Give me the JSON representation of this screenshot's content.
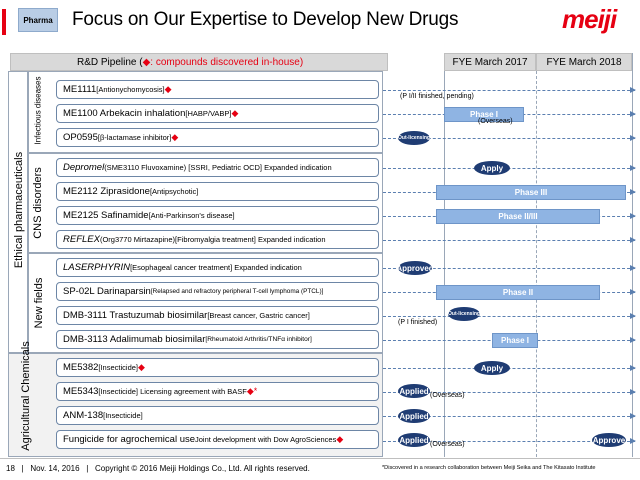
{
  "header": {
    "tag": "Pharma",
    "title": "Focus on Our Expertise to Develop New Drugs",
    "logo": "meiji"
  },
  "table_header": {
    "pipeline_label": "R&D Pipeline (",
    "legend_mark": "◆",
    "legend_text": ": compounds discovered in-house)",
    "legend_close": "",
    "fye_2017": "FYE March 2017",
    "fye_2018": "FYE March 2018"
  },
  "sections": {
    "ethical": "Ethical pharmaceuticals",
    "infectious": "Infectious diseases",
    "cns": "CNS disorders",
    "newfields": "New fields",
    "agri": "Agricultural Chemicals"
  },
  "items": {
    "me1111": {
      "name": "ME1111 ",
      "detail": "[Antionychomycosis] ",
      "mark": "◆"
    },
    "me1100": {
      "name": "ME1100  Arbekacin inhalation ",
      "detail": "[HABP/VABP] ",
      "mark": "◆"
    },
    "op0595": {
      "name": "OP0595 ",
      "detail": "[β-lactamase inhibitor] ",
      "mark": "◆"
    },
    "depromel": {
      "name": "Depromel",
      "detail": " (SME3110  Fluvoxamine) [SSRI, Pediatric OCD] Expanded indication"
    },
    "me2112": {
      "name": "ME2112  Ziprasidone ",
      "detail": "[Antipsychotic]"
    },
    "me2125": {
      "name": "ME2125  Safinamide ",
      "detail": "[Anti-Parkinson's disease]"
    },
    "reflex": {
      "name": "REFLEX",
      "detail": "  (Org3770 Mirtazapine)[Fibromyalgia treatment] Expanded indication"
    },
    "laserphyrin": {
      "name": "LASERPHYRIN",
      "detail": " [Esophageal cancer treatment] Expanded indication"
    },
    "sp02l": {
      "name": "SP-02L  Darinaparsin ",
      "detail": "[Relapsed and refractory peripheral T-cell lymphoma (PTCL)]"
    },
    "dmb3111": {
      "name": "DMB-3111  Trastuzumab biosimilar ",
      "detail": "[Breast cancer, Gastric cancer]"
    },
    "dmb3113": {
      "name": "DMB-3113  Adalimumab biosimilar ",
      "detail": "[Rheumatoid Arthritis/TNFα inhibitor]"
    },
    "me5382": {
      "name": "ME5382 ",
      "detail": "[Insecticide] ",
      "mark": "◆"
    },
    "me5343": {
      "name": "ME5343 ",
      "detail": "[Insecticide] Licensing agreement with BASF ",
      "mark": "◆*"
    },
    "anm138": {
      "name": "ANM-138 ",
      "detail": "[Insecticide]"
    },
    "fungicide": {
      "name": "Fungicide for agrochemical use  ",
      "detail": "Joint development with Dow AgroSciences ",
      "mark": "◆"
    }
  },
  "timeline": {
    "me1111_note": "(P I/II finished, pending)",
    "me1100_phase": "Phase I",
    "me1100_note": "(Overseas)",
    "op0595_oval": "Out-licensing",
    "depromel_oval": "Apply",
    "me2112_phase": "Phase III",
    "me2125_phase": "Phase II/III",
    "laserphyrin_oval": "Approved",
    "sp02l_phase": "Phase II",
    "dmb3111_oval": "Out-licensing",
    "dmb3111_note": "(P I finished)",
    "dmb3113_phase": "Phase I",
    "me5382_oval": "Apply",
    "me5343_oval": "Applied",
    "me5343_note": "(Overseas)",
    "anm138_oval": "Applied",
    "fungicide_oval": "Applied",
    "fungicide_note": "(Overseas)",
    "fungicide_oval2": "Approve"
  },
  "footer": {
    "page": "18",
    "sep1": "|",
    "date": "Nov. 14, 2016",
    "sep2": "|",
    "copyright": "Copyright © 2016 Meiji Holdings Co., Ltd. All rights reserved.",
    "note": "*Discovered in a research collaboration between Meiji Seika and The Kitasato Institute"
  },
  "colors": {
    "brand_red": "#e60012",
    "phase_blue": "#8fb4e3",
    "oval_navy": "#1f3c73"
  }
}
